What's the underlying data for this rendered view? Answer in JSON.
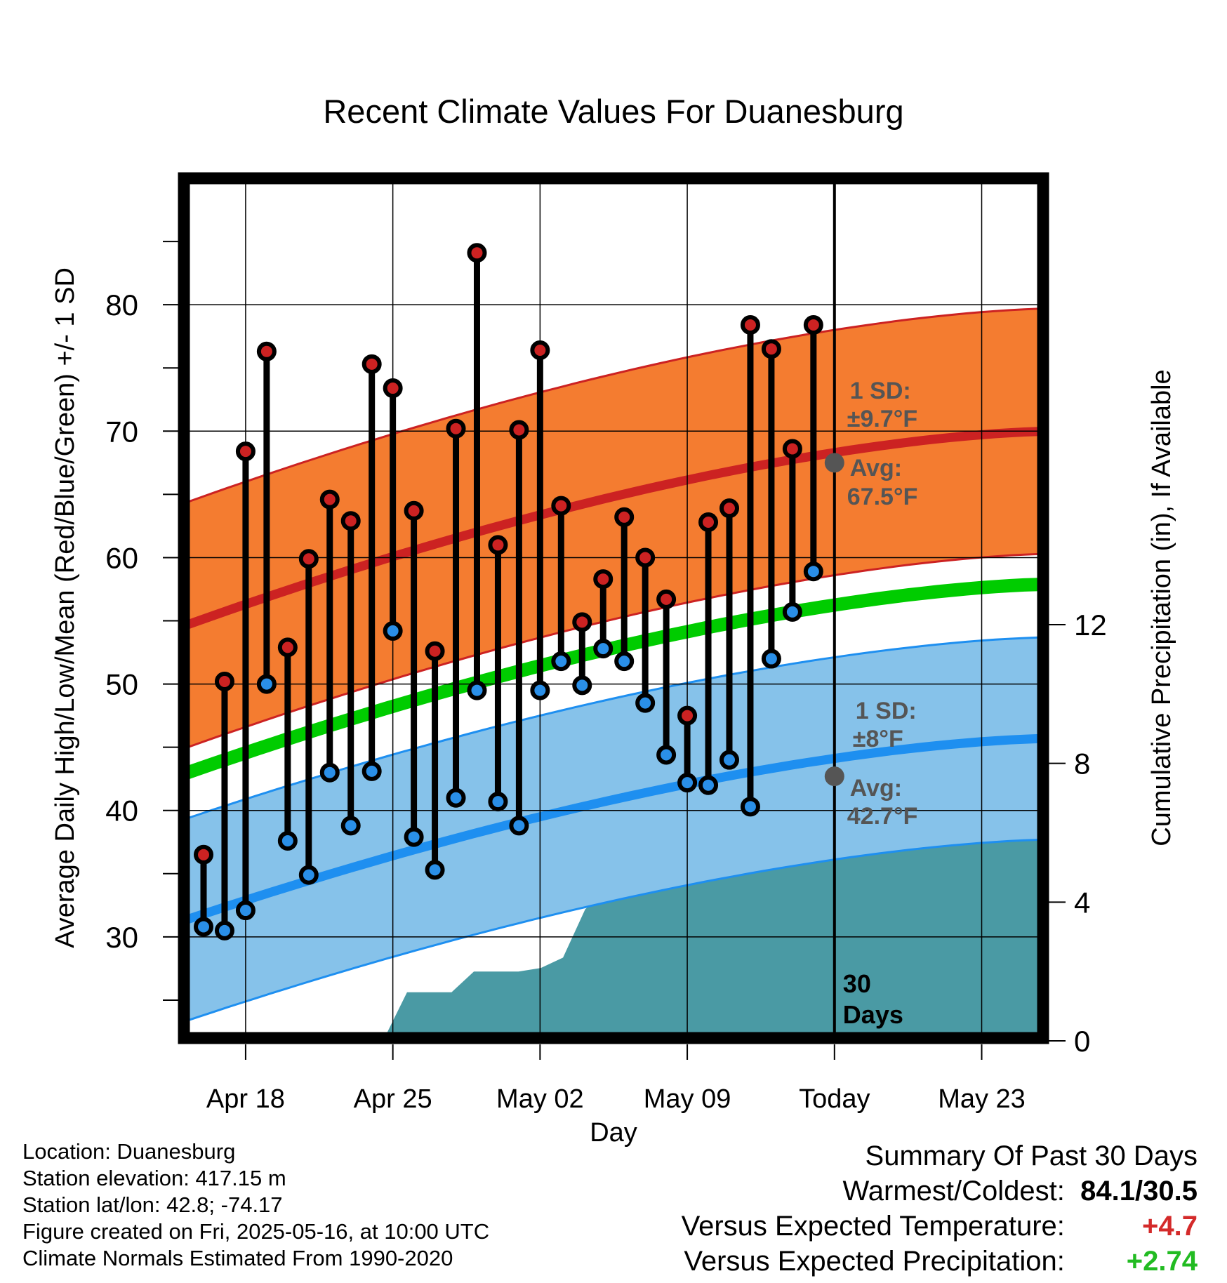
{
  "chart_data": {
    "type": "line",
    "title": "Recent Climate Values For Duanesburg",
    "xlabel": "Day",
    "ylabel": "Average Daily High/Low/Mean (Red/Blue/Green) +/- 1 SD",
    "y2label": "Cumulative Precipitation (in), If Available",
    "ylim": [
      22,
      90
    ],
    "y2lim": [
      0,
      15.5
    ],
    "x_tick_labels": [
      "Apr 18",
      "Apr 25",
      "May 02",
      "May 09",
      "Today",
      "May 23"
    ],
    "y_ticks": [
      30,
      40,
      50,
      60,
      70,
      80
    ],
    "y2_ticks": [
      0,
      4,
      8,
      12
    ],
    "grid": true,
    "today_marker_label": "30\nDays",
    "days": [
      "Apr 16",
      "Apr 17",
      "Apr 18",
      "Apr 19",
      "Apr 20",
      "Apr 21",
      "Apr 22",
      "Apr 23",
      "Apr 24",
      "Apr 25",
      "Apr 26",
      "Apr 27",
      "Apr 28",
      "Apr 29",
      "Apr 30",
      "May 01",
      "May 02",
      "May 03",
      "May 04",
      "May 05",
      "May 06",
      "May 07",
      "May 08",
      "May 09",
      "May 10",
      "May 11",
      "May 12",
      "May 13",
      "May 14",
      "May 15"
    ],
    "series": [
      {
        "color": "#cc2222",
        "values": [
          36.5,
          50.2,
          68.4,
          76.3,
          52.9,
          59.9,
          64.6,
          62.9,
          75.3,
          73.4,
          63.7,
          52.6,
          70.2,
          84.1,
          61.0,
          70.1,
          76.4,
          64.1,
          54.9,
          58.3,
          63.2,
          60.0,
          56.7,
          47.5,
          62.8,
          63.9,
          78.4,
          76.5,
          68.6,
          78.4
        ]
      },
      {
        "color": "#2a8fe8",
        "values": [
          30.8,
          30.5,
          32.1,
          50.0,
          37.6,
          34.9,
          43.0,
          38.8,
          43.1,
          54.2,
          37.9,
          35.3,
          41.0,
          49.5,
          40.7,
          38.8,
          49.5,
          51.8,
          49.9,
          52.8,
          51.8,
          48.5,
          44.4,
          42.2,
          42.0,
          44.0,
          40.3,
          52.0,
          55.7,
          58.9
        ]
      }
    ],
    "normals": {
      "high": {
        "start": 54.6,
        "today": 67.5,
        "end": 70.0,
        "sd_label": "1 SD:",
        "sd_value": "±9.7°F",
        "avg_label": "Avg:",
        "avg_value": "67.5°F",
        "sd": 9.7,
        "color": "#cc2222",
        "band_color": "#f47c30"
      },
      "low": {
        "start": 31.3,
        "today": 42.7,
        "end": 45.7,
        "sd_label": "1 SD:",
        "sd_value": "±8°F",
        "avg_label": "Avg:",
        "avg_value": "42.7°F",
        "sd": 8.0,
        "color": "#1e8ff0",
        "band_color": "#86c2ea"
      },
      "mean": {
        "start": 42.9,
        "end": 57.9,
        "color": "#00cc00"
      }
    },
    "precip_color": "#4a9aa4",
    "precipitation": [
      0.0,
      0.0,
      0.0,
      0.0,
      0.0,
      0.0,
      0.1,
      0.1,
      0.1,
      0.1,
      1.4,
      1.4,
      1.4,
      2.0,
      2.0,
      2.0,
      2.1,
      2.4,
      3.8,
      4.3,
      4.8,
      4.8,
      4.8,
      6.3,
      6.4,
      6.4,
      6.4,
      6.4,
      6.4,
      6.6,
      6.6,
      6.6,
      6.6,
      6.6,
      6.6,
      6.6,
      6.6,
      6.6,
      6.6,
      6.6
    ]
  },
  "info": {
    "location": "Location: Duanesburg",
    "elevation": "Station elevation: 417.15 m",
    "latlon": "Station lat/lon: 42.8; -74.17",
    "created": "Figure created on Fri, 2025-05-16, at 10:00 UTC",
    "normals": "Climate Normals Estimated From 1990-2020"
  },
  "summary": {
    "title": "Summary Of Past 30 Days",
    "warm_cold_label": "Warmest/Coldest:",
    "warm_cold_value": "84.1/30.5",
    "temp_label": "Versus Expected Temperature:",
    "temp_value": "+4.7",
    "temp_color": "#d42a2a",
    "precip_label": "Versus Expected Precipitation:",
    "precip_value": "+2.74",
    "precip_color": "#22bb22"
  }
}
